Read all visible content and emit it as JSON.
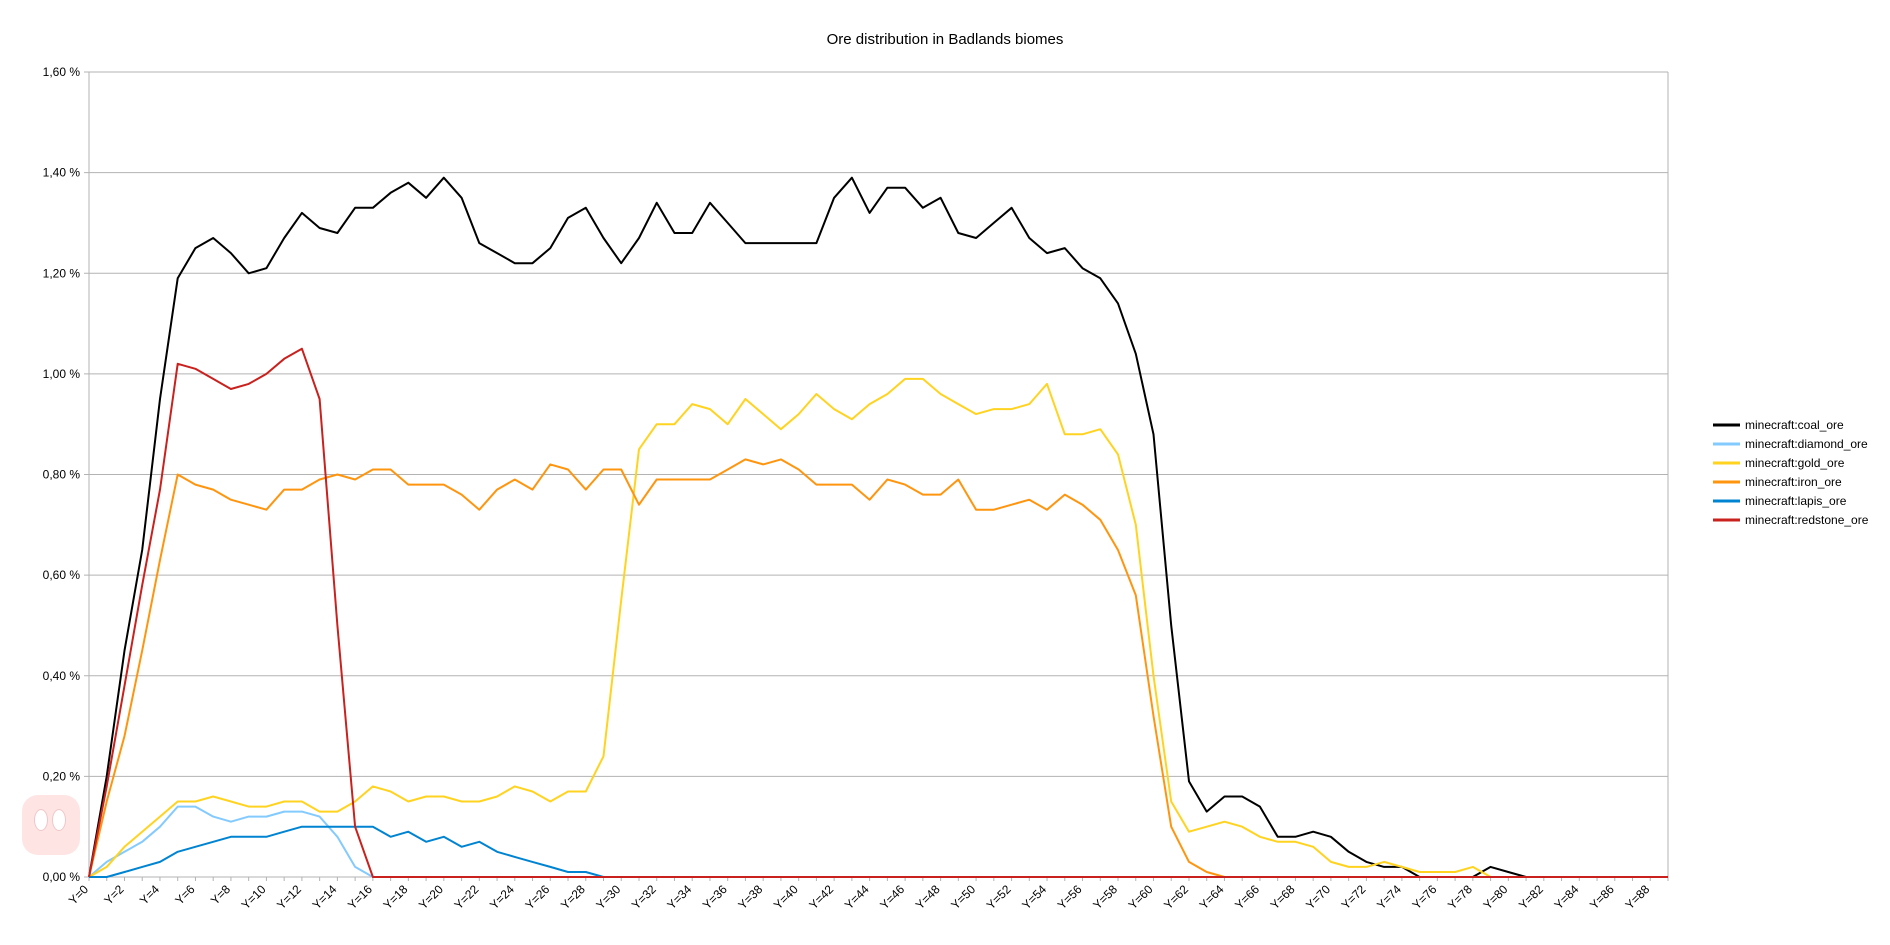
{
  "chart_data": {
    "type": "line",
    "title": "Ore distribution in Badlands biomes",
    "xlabel": "",
    "ylabel": "",
    "ylim": [
      0,
      1.6
    ],
    "yticks": [
      "0,00 %",
      "0,20 %",
      "0,40 %",
      "0,60 %",
      "0,80 %",
      "1,00 %",
      "1,20 %",
      "1,40 %",
      "1,60 %"
    ],
    "x_tick_labels": [
      "Y=0",
      "Y=2",
      "Y=4",
      "Y=6",
      "Y=8",
      "Y=10",
      "Y=12",
      "Y=14",
      "Y=16",
      "Y=18",
      "Y=20",
      "Y=22",
      "Y=24",
      "Y=26",
      "Y=28",
      "Y=30",
      "Y=32",
      "Y=34",
      "Y=36",
      "Y=38",
      "Y=40",
      "Y=42",
      "Y=44",
      "Y=46",
      "Y=48",
      "Y=50",
      "Y=52",
      "Y=54",
      "Y=56",
      "Y=58",
      "Y=60",
      "Y=62",
      "Y=64",
      "Y=66",
      "Y=68",
      "Y=70",
      "Y=72",
      "Y=74",
      "Y=76",
      "Y=78",
      "Y=80",
      "Y=82",
      "Y=84",
      "Y=86",
      "Y=88"
    ],
    "x_count": 90,
    "grid": true,
    "legend_position": "right",
    "series": [
      {
        "name": "minecraft:coal_ore",
        "color": "#000000",
        "values": [
          0,
          0.2,
          0.45,
          0.65,
          0.95,
          1.19,
          1.25,
          1.27,
          1.24,
          1.2,
          1.21,
          1.27,
          1.32,
          1.29,
          1.28,
          1.33,
          1.33,
          1.36,
          1.38,
          1.35,
          1.39,
          1.35,
          1.26,
          1.24,
          1.22,
          1.22,
          1.25,
          1.31,
          1.33,
          1.27,
          1.22,
          1.27,
          1.34,
          1.28,
          1.28,
          1.34,
          1.3,
          1.26,
          1.26,
          1.26,
          1.26,
          1.26,
          1.35,
          1.39,
          1.32,
          1.37,
          1.37,
          1.33,
          1.35,
          1.28,
          1.27,
          1.3,
          1.33,
          1.27,
          1.24,
          1.25,
          1.21,
          1.19,
          1.14,
          1.04,
          0.88,
          0.5,
          0.19,
          0.13,
          0.16,
          0.16,
          0.14,
          0.08,
          0.08,
          0.09,
          0.08,
          0.05,
          0.03,
          0.02,
          0.02,
          0,
          0,
          0,
          0,
          0.02,
          0.01,
          0,
          0,
          0,
          0,
          0,
          0,
          0,
          0,
          0
        ]
      },
      {
        "name": "minecraft:diamond_ore",
        "color": "#83caff",
        "values": [
          0,
          0.03,
          0.05,
          0.07,
          0.1,
          0.14,
          0.14,
          0.12,
          0.11,
          0.12,
          0.12,
          0.13,
          0.13,
          0.12,
          0.08,
          0.02,
          0,
          0,
          0,
          0,
          0,
          0,
          0,
          0,
          0,
          0,
          0,
          0,
          0,
          0,
          0,
          0,
          0,
          0,
          0,
          0,
          0,
          0,
          0,
          0,
          0,
          0,
          0,
          0,
          0,
          0,
          0,
          0,
          0,
          0,
          0,
          0,
          0,
          0,
          0,
          0,
          0,
          0,
          0,
          0,
          0,
          0,
          0,
          0,
          0,
          0,
          0,
          0,
          0,
          0,
          0,
          0,
          0,
          0,
          0,
          0,
          0,
          0,
          0,
          0,
          0,
          0,
          0,
          0,
          0,
          0,
          0,
          0,
          0,
          0
        ]
      },
      {
        "name": "minecraft:gold_ore",
        "color": "#ffd320",
        "values": [
          0,
          0.02,
          0.06,
          0.09,
          0.12,
          0.15,
          0.15,
          0.16,
          0.15,
          0.14,
          0.14,
          0.15,
          0.15,
          0.13,
          0.13,
          0.15,
          0.18,
          0.17,
          0.15,
          0.16,
          0.16,
          0.15,
          0.15,
          0.16,
          0.18,
          0.17,
          0.15,
          0.17,
          0.17,
          0.24,
          0.55,
          0.85,
          0.9,
          0.9,
          0.94,
          0.93,
          0.9,
          0.95,
          0.92,
          0.89,
          0.92,
          0.96,
          0.93,
          0.91,
          0.94,
          0.96,
          0.99,
          0.99,
          0.96,
          0.94,
          0.92,
          0.93,
          0.93,
          0.94,
          0.98,
          0.88,
          0.88,
          0.89,
          0.84,
          0.7,
          0.4,
          0.15,
          0.09,
          0.1,
          0.11,
          0.1,
          0.08,
          0.07,
          0.07,
          0.06,
          0.03,
          0.02,
          0.02,
          0.03,
          0.02,
          0.01,
          0.01,
          0.01,
          0.02,
          0,
          0,
          0,
          0,
          0,
          0,
          0,
          0,
          0,
          0,
          0
        ]
      },
      {
        "name": "minecraft:iron_ore",
        "color": "#ff950e",
        "values": [
          0,
          0.15,
          0.28,
          0.45,
          0.63,
          0.8,
          0.78,
          0.77,
          0.75,
          0.74,
          0.73,
          0.77,
          0.77,
          0.79,
          0.8,
          0.79,
          0.81,
          0.81,
          0.78,
          0.78,
          0.78,
          0.76,
          0.73,
          0.77,
          0.79,
          0.77,
          0.82,
          0.81,
          0.77,
          0.81,
          0.81,
          0.74,
          0.79,
          0.79,
          0.79,
          0.79,
          0.81,
          0.83,
          0.82,
          0.83,
          0.81,
          0.78,
          0.78,
          0.78,
          0.75,
          0.79,
          0.78,
          0.76,
          0.76,
          0.79,
          0.73,
          0.73,
          0.74,
          0.75,
          0.73,
          0.76,
          0.74,
          0.71,
          0.65,
          0.56,
          0.32,
          0.1,
          0.03,
          0.01,
          0,
          0,
          0,
          0,
          0,
          0,
          0,
          0,
          0,
          0,
          0,
          0,
          0,
          0,
          0,
          0,
          0,
          0,
          0,
          0,
          0,
          0,
          0,
          0,
          0,
          0
        ]
      },
      {
        "name": "minecraft:lapis_ore",
        "color": "#0084d1",
        "values": [
          0,
          0,
          0.01,
          0.02,
          0.03,
          0.05,
          0.06,
          0.07,
          0.08,
          0.08,
          0.08,
          0.09,
          0.1,
          0.1,
          0.1,
          0.1,
          0.1,
          0.08,
          0.09,
          0.07,
          0.08,
          0.06,
          0.07,
          0.05,
          0.04,
          0.03,
          0.02,
          0.01,
          0.01,
          0,
          0,
          0,
          0,
          0,
          0,
          0,
          0,
          0,
          0,
          0,
          0,
          0,
          0,
          0,
          0,
          0,
          0,
          0,
          0,
          0,
          0,
          0,
          0,
          0,
          0,
          0,
          0,
          0,
          0,
          0,
          0,
          0,
          0,
          0,
          0,
          0,
          0,
          0,
          0,
          0,
          0,
          0,
          0,
          0,
          0,
          0,
          0,
          0,
          0,
          0,
          0,
          0,
          0,
          0,
          0,
          0,
          0,
          0,
          0,
          0
        ]
      },
      {
        "name": "minecraft:redstone_ore",
        "color": "#c9211e",
        "values": [
          0,
          0.18,
          0.38,
          0.58,
          0.77,
          1.02,
          1.01,
          0.99,
          0.97,
          0.98,
          1,
          1.03,
          1.05,
          0.95,
          0.5,
          0.1,
          0,
          0,
          0,
          0,
          0,
          0,
          0,
          0,
          0,
          0,
          0,
          0,
          0,
          0,
          0,
          0,
          0,
          0,
          0,
          0,
          0,
          0,
          0,
          0,
          0,
          0,
          0,
          0,
          0,
          0,
          0,
          0,
          0,
          0,
          0,
          0,
          0,
          0,
          0,
          0,
          0,
          0,
          0,
          0,
          0,
          0,
          0,
          0,
          0,
          0,
          0,
          0,
          0,
          0,
          0,
          0,
          0,
          0,
          0,
          0,
          0,
          0,
          0,
          0,
          0,
          0,
          0,
          0,
          0,
          0,
          0,
          0,
          0,
          0
        ]
      }
    ]
  }
}
